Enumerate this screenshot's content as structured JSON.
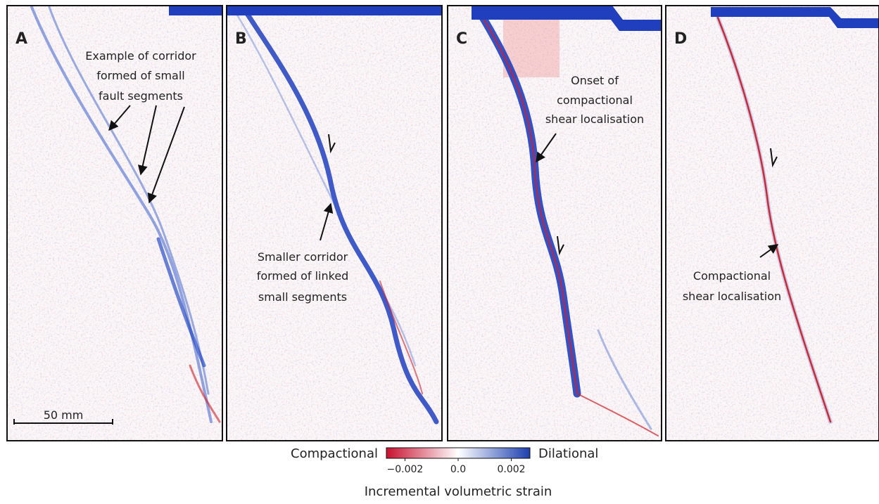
{
  "panels": [
    {
      "label": "A",
      "annotation": [
        "Example of corridor",
        "formed of small",
        "fault segments"
      ]
    },
    {
      "label": "B",
      "annotation": [
        "Smaller corridor",
        "formed of linked",
        "small segments"
      ]
    },
    {
      "label": "C",
      "annotation": [
        "Onset of",
        "compactional",
        "shear localisation"
      ]
    },
    {
      "label": "D",
      "annotation": [
        "Compactional",
        "shear localisation"
      ]
    }
  ],
  "scale_bar": "50 mm",
  "colorbar": {
    "left_label": "Compactional",
    "right_label": "Dilational",
    "range": [
      -0.0027,
      0.0027
    ],
    "ticks": [
      {
        "value": -0.002,
        "label": "−0.002"
      },
      {
        "value": 0,
        "label": "0.0"
      },
      {
        "value": 0.002,
        "label": "0.002"
      }
    ],
    "title": "Incremental volumetric strain"
  }
}
